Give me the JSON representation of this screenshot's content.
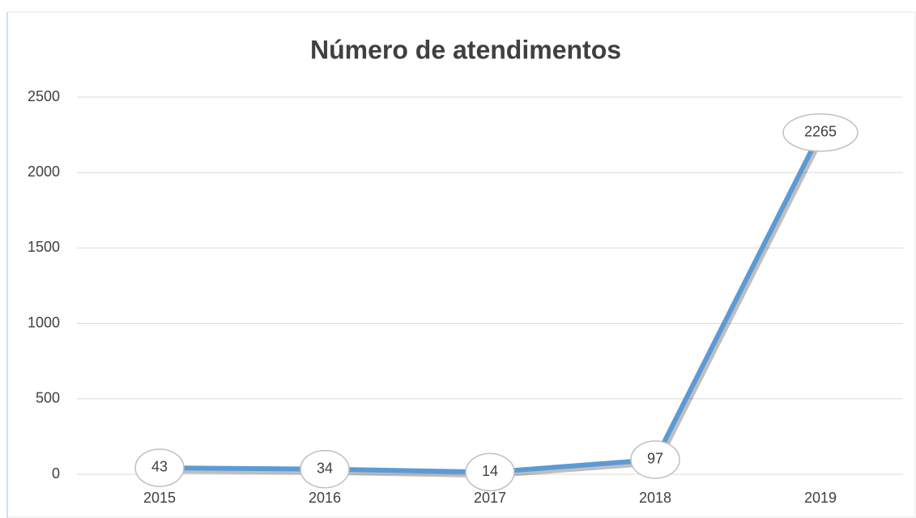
{
  "chart_data": {
    "type": "line",
    "title": "Número de atendimentos",
    "categories": [
      "2015",
      "2016",
      "2017",
      "2018",
      "2019"
    ],
    "series": [
      {
        "name": "Número de atendimentos",
        "color": "#5b9bd5",
        "values": [
          43,
          34,
          14,
          97,
          2265
        ]
      }
    ],
    "ylim": [
      0,
      2500
    ],
    "yticks": [
      0,
      500,
      1000,
      1500,
      2000,
      2500
    ],
    "grid": true
  }
}
